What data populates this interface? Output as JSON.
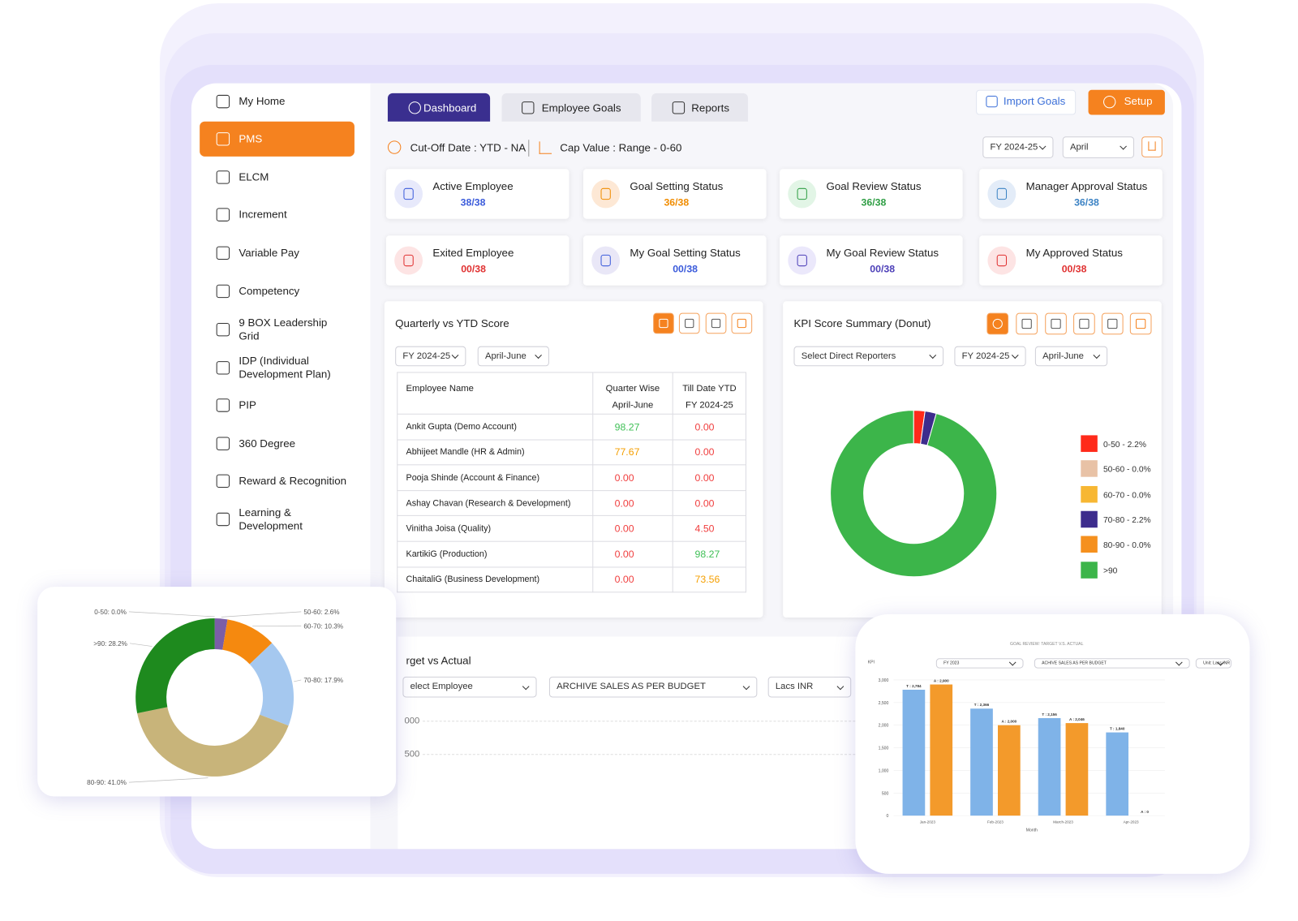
{
  "sidebar": {
    "items": [
      "My Home",
      "PMS",
      "ELCM",
      "Increment",
      "Variable Pay",
      "Competency",
      "9 BOX Leadership Grid",
      "IDP (Individual Development Plan)",
      "PIP",
      "360 Degree",
      "Reward & Recognition",
      "Learning & Development"
    ]
  },
  "tabs": [
    "Dashboard",
    "Employee Goals",
    "Reports"
  ],
  "actions": [
    "Import Goals",
    "Setup"
  ],
  "filters": {
    "cut_off": "Cut-Off Date : YTD - NA",
    "cap_value": "Cap Value : Range - 0-60",
    "year": "FY 2024-25",
    "month": "April"
  },
  "cards": [
    {
      "label": "Active Employee",
      "value": "38/38"
    },
    {
      "label": "Goal Setting Status",
      "value": "36/38"
    },
    {
      "label": "Goal Review Status",
      "value": "36/38"
    },
    {
      "label": "Manager Approval Status",
      "value": "36/38"
    },
    {
      "label": "Exited Employee",
      "value": "00/38"
    },
    {
      "label": "My Goal Setting Status",
      "value": "00/38"
    },
    {
      "label": "My Goal Review Status",
      "value": "00/38"
    },
    {
      "label": "My Approved Status",
      "value": "00/38"
    }
  ],
  "quarterly": {
    "title": "Quarterly vs YTD Score",
    "filters": [
      "FY 2024-25",
      "April-June"
    ],
    "headers": [
      "Employee Name",
      [
        "Quarter Wise",
        "April-June"
      ],
      [
        "Till Date YTD",
        "FY 2024-25"
      ]
    ],
    "rows": [
      [
        "Ankit Gupta (Demo Account)",
        "98.27",
        "0.00"
      ],
      [
        "Abhijeet Mandle (HR & Admin)",
        "77.67",
        "0.00"
      ],
      [
        "Pooja Shinde (Account & Finance)",
        "0.00",
        "0.00"
      ],
      [
        "Ashay Chavan (Research & Development)",
        "0.00",
        "0.00"
      ],
      [
        "Vinitha Joisa (Quality)",
        "0.00",
        "4.50"
      ],
      [
        "KartikiG (Production)",
        "0.00",
        "98.27"
      ],
      [
        "ChaitaliG (Business Development)",
        "0.00",
        "73.56"
      ]
    ]
  },
  "target_panel": {
    "title": "rget vs Actual",
    "filters": [
      "elect Employee",
      "ARCHIVE SALES AS PER BUDGET",
      "Lacs INR"
    ],
    "axis_labels": [
      "000",
      "500"
    ]
  },
  "chart_data": [
    {
      "type": "pie",
      "title": "KPI Score Summary (Donut)",
      "filters": [
        "Select Direct Reporters",
        "FY 2024-25",
        "April-June"
      ],
      "categories": [
        "0-50 - 2.2%",
        "50-60 - 0.0%",
        "60-70 - 0.0%",
        "70-80 - 2.2%",
        "80-90 - 0.0%",
        ">90"
      ],
      "values": [
        2.2,
        0,
        0,
        2.2,
        0,
        95.6
      ],
      "colors": [
        "#ff2a1a",
        "#e8c2a6",
        "#f7b733",
        "#3d2c8d",
        "#f5901e",
        "#3cb54a"
      ]
    },
    {
      "type": "pie",
      "categories": [
        "0-50: 0.0%",
        "50-60: 2.6%",
        "60-70: 10.3%",
        "70-80: 17.9%",
        "80-90: 41.0%",
        ">90: 28.2%"
      ],
      "values": [
        0,
        2.6,
        10.3,
        17.9,
        41.0,
        28.2
      ],
      "colors": [
        "#d9480f",
        "#7b5ea7",
        "#f5890f",
        "#a5c8ef",
        "#c8b47a",
        "#1e8a1e"
      ]
    },
    {
      "type": "bar",
      "title": "GOAL REVIEW: TARGET V.S. ACTUAL",
      "kpi_label": "KPI",
      "filters": [
        "FY 2023",
        "ACHIVE SALES AS PER BUDGET",
        "Unit: Lacs INR"
      ],
      "xlabel": "Month",
      "categories": [
        "Jan-2023",
        "Feb-2023",
        "March-2023",
        "Apr-2023"
      ],
      "series": [
        {
          "color": "#7fb3e8",
          "values": [
            2784,
            2366,
            2156,
            1840
          ],
          "value_labels": [
            "T : 2,784",
            "T : 2,366",
            "T : 2,156",
            "T : 1,840"
          ]
        },
        {
          "color": "#f39a2b",
          "values": [
            2900,
            2000,
            2046,
            0
          ],
          "value_labels": [
            "A : 2,900",
            "A : 2,000",
            "A : 2,046",
            "A : 0"
          ]
        }
      ],
      "ylim": [
        0,
        3000
      ],
      "yticks": [
        0,
        500,
        {
          "value": 1000,
          "label": "1,000"
        },
        {
          "value": 1500,
          "label": "1,500"
        },
        {
          "value": 2000,
          "label": "2,000"
        },
        {
          "value": 2500,
          "label": "2,500"
        },
        {
          "value": 3000,
          "label": "3,000"
        }
      ],
      "grid": true
    }
  ]
}
